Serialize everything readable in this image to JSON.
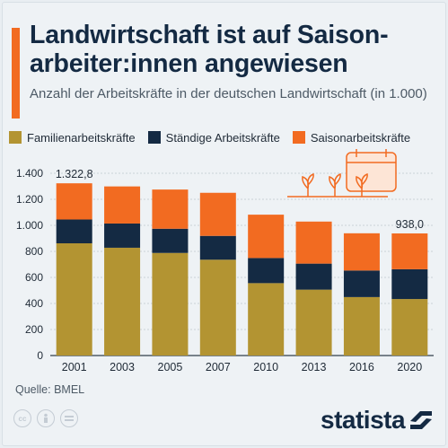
{
  "header": {
    "title": "Landwirtschaft ist auf Saison-arbeiter:innen angewiesen",
    "subtitle": "Anzahl der Arbeitskräfte in der deutschen Landwirtschaft (in 1.000)"
  },
  "colors": {
    "family": "#b39432",
    "permanent": "#142a43",
    "seasonal": "#f26b21",
    "accent": "#f26b21"
  },
  "legend": [
    {
      "label": "Familienarbeitskräfte",
      "color": "#b39432"
    },
    {
      "label": "Ständige Arbeitskräfte",
      "color": "#142a43"
    },
    {
      "label": "Saisonarbeitskräfte",
      "color": "#f26b21"
    }
  ],
  "chart_data": {
    "type": "bar",
    "stacked": true,
    "categories": [
      "2001",
      "2003",
      "2005",
      "2007",
      "2010",
      "2013",
      "2016",
      "2020"
    ],
    "series": [
      {
        "name": "Familienarbeitskräfte",
        "values": [
          862,
          828,
          788,
          736,
          556,
          506,
          449,
          434
        ]
      },
      {
        "name": "Ständige Arbeitskräfte",
        "values": [
          183,
          186,
          186,
          183,
          193,
          200,
          204,
          229
        ]
      },
      {
        "name": "Saisonarbeitskräfte",
        "values": [
          278,
          285,
          301,
          331,
          333,
          323,
          286,
          275
        ]
      }
    ],
    "totals": [
      1322.8,
      1299,
      1275,
      1250,
      1082,
      1029,
      939,
      938
    ],
    "data_labels": [
      {
        "index": 0,
        "text": "1.322,8"
      },
      {
        "index": 7,
        "text": "938,0"
      }
    ],
    "ylim": [
      0,
      1400
    ],
    "yticks": [
      0,
      200,
      400,
      600,
      800,
      1000,
      1200,
      1400
    ],
    "ytick_labels": [
      "0",
      "200",
      "400",
      "600",
      "800",
      "1.000",
      "1.200",
      "1.400"
    ],
    "grid": true,
    "legend_position": "top-left"
  },
  "footer": {
    "source": "Quelle: BMEL",
    "brand": "statista"
  }
}
